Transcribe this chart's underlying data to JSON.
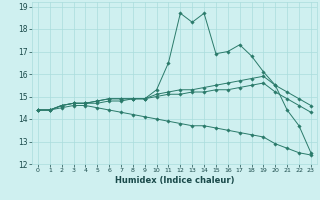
{
  "xlabel": "Humidex (Indice chaleur)",
  "bg_color": "#cff0f0",
  "grid_color": "#aadddd",
  "line_color": "#2a7a6a",
  "xlim": [
    -0.5,
    23.5
  ],
  "ylim": [
    12,
    19.2
  ],
  "yticks": [
    12,
    13,
    14,
    15,
    16,
    17,
    18,
    19
  ],
  "xticks": [
    0,
    1,
    2,
    3,
    4,
    5,
    6,
    7,
    8,
    9,
    10,
    11,
    12,
    13,
    14,
    15,
    16,
    17,
    18,
    19,
    20,
    21,
    22,
    23
  ],
  "series": [
    [
      14.4,
      14.4,
      14.6,
      14.7,
      14.7,
      14.7,
      14.8,
      14.8,
      14.9,
      14.9,
      15.3,
      16.5,
      18.7,
      18.3,
      18.7,
      16.9,
      17.0,
      17.3,
      16.8,
      16.1,
      15.5,
      14.4,
      13.7,
      12.5
    ],
    [
      14.4,
      14.4,
      14.6,
      14.7,
      14.7,
      14.8,
      14.9,
      14.9,
      14.9,
      14.9,
      15.1,
      15.2,
      15.3,
      15.3,
      15.4,
      15.5,
      15.6,
      15.7,
      15.8,
      15.9,
      15.5,
      15.2,
      14.9,
      14.6
    ],
    [
      14.4,
      14.4,
      14.6,
      14.7,
      14.7,
      14.8,
      14.9,
      14.9,
      14.9,
      14.9,
      15.0,
      15.1,
      15.1,
      15.2,
      15.2,
      15.3,
      15.3,
      15.4,
      15.5,
      15.6,
      15.2,
      14.9,
      14.6,
      14.3
    ],
    [
      14.4,
      14.4,
      14.5,
      14.6,
      14.6,
      14.5,
      14.4,
      14.3,
      14.2,
      14.1,
      14.0,
      13.9,
      13.8,
      13.7,
      13.7,
      13.6,
      13.5,
      13.4,
      13.3,
      13.2,
      12.9,
      12.7,
      12.5,
      12.4
    ]
  ],
  "xlabel_fontsize": 6,
  "xtick_fontsize": 4.5,
  "ytick_fontsize": 5.5
}
